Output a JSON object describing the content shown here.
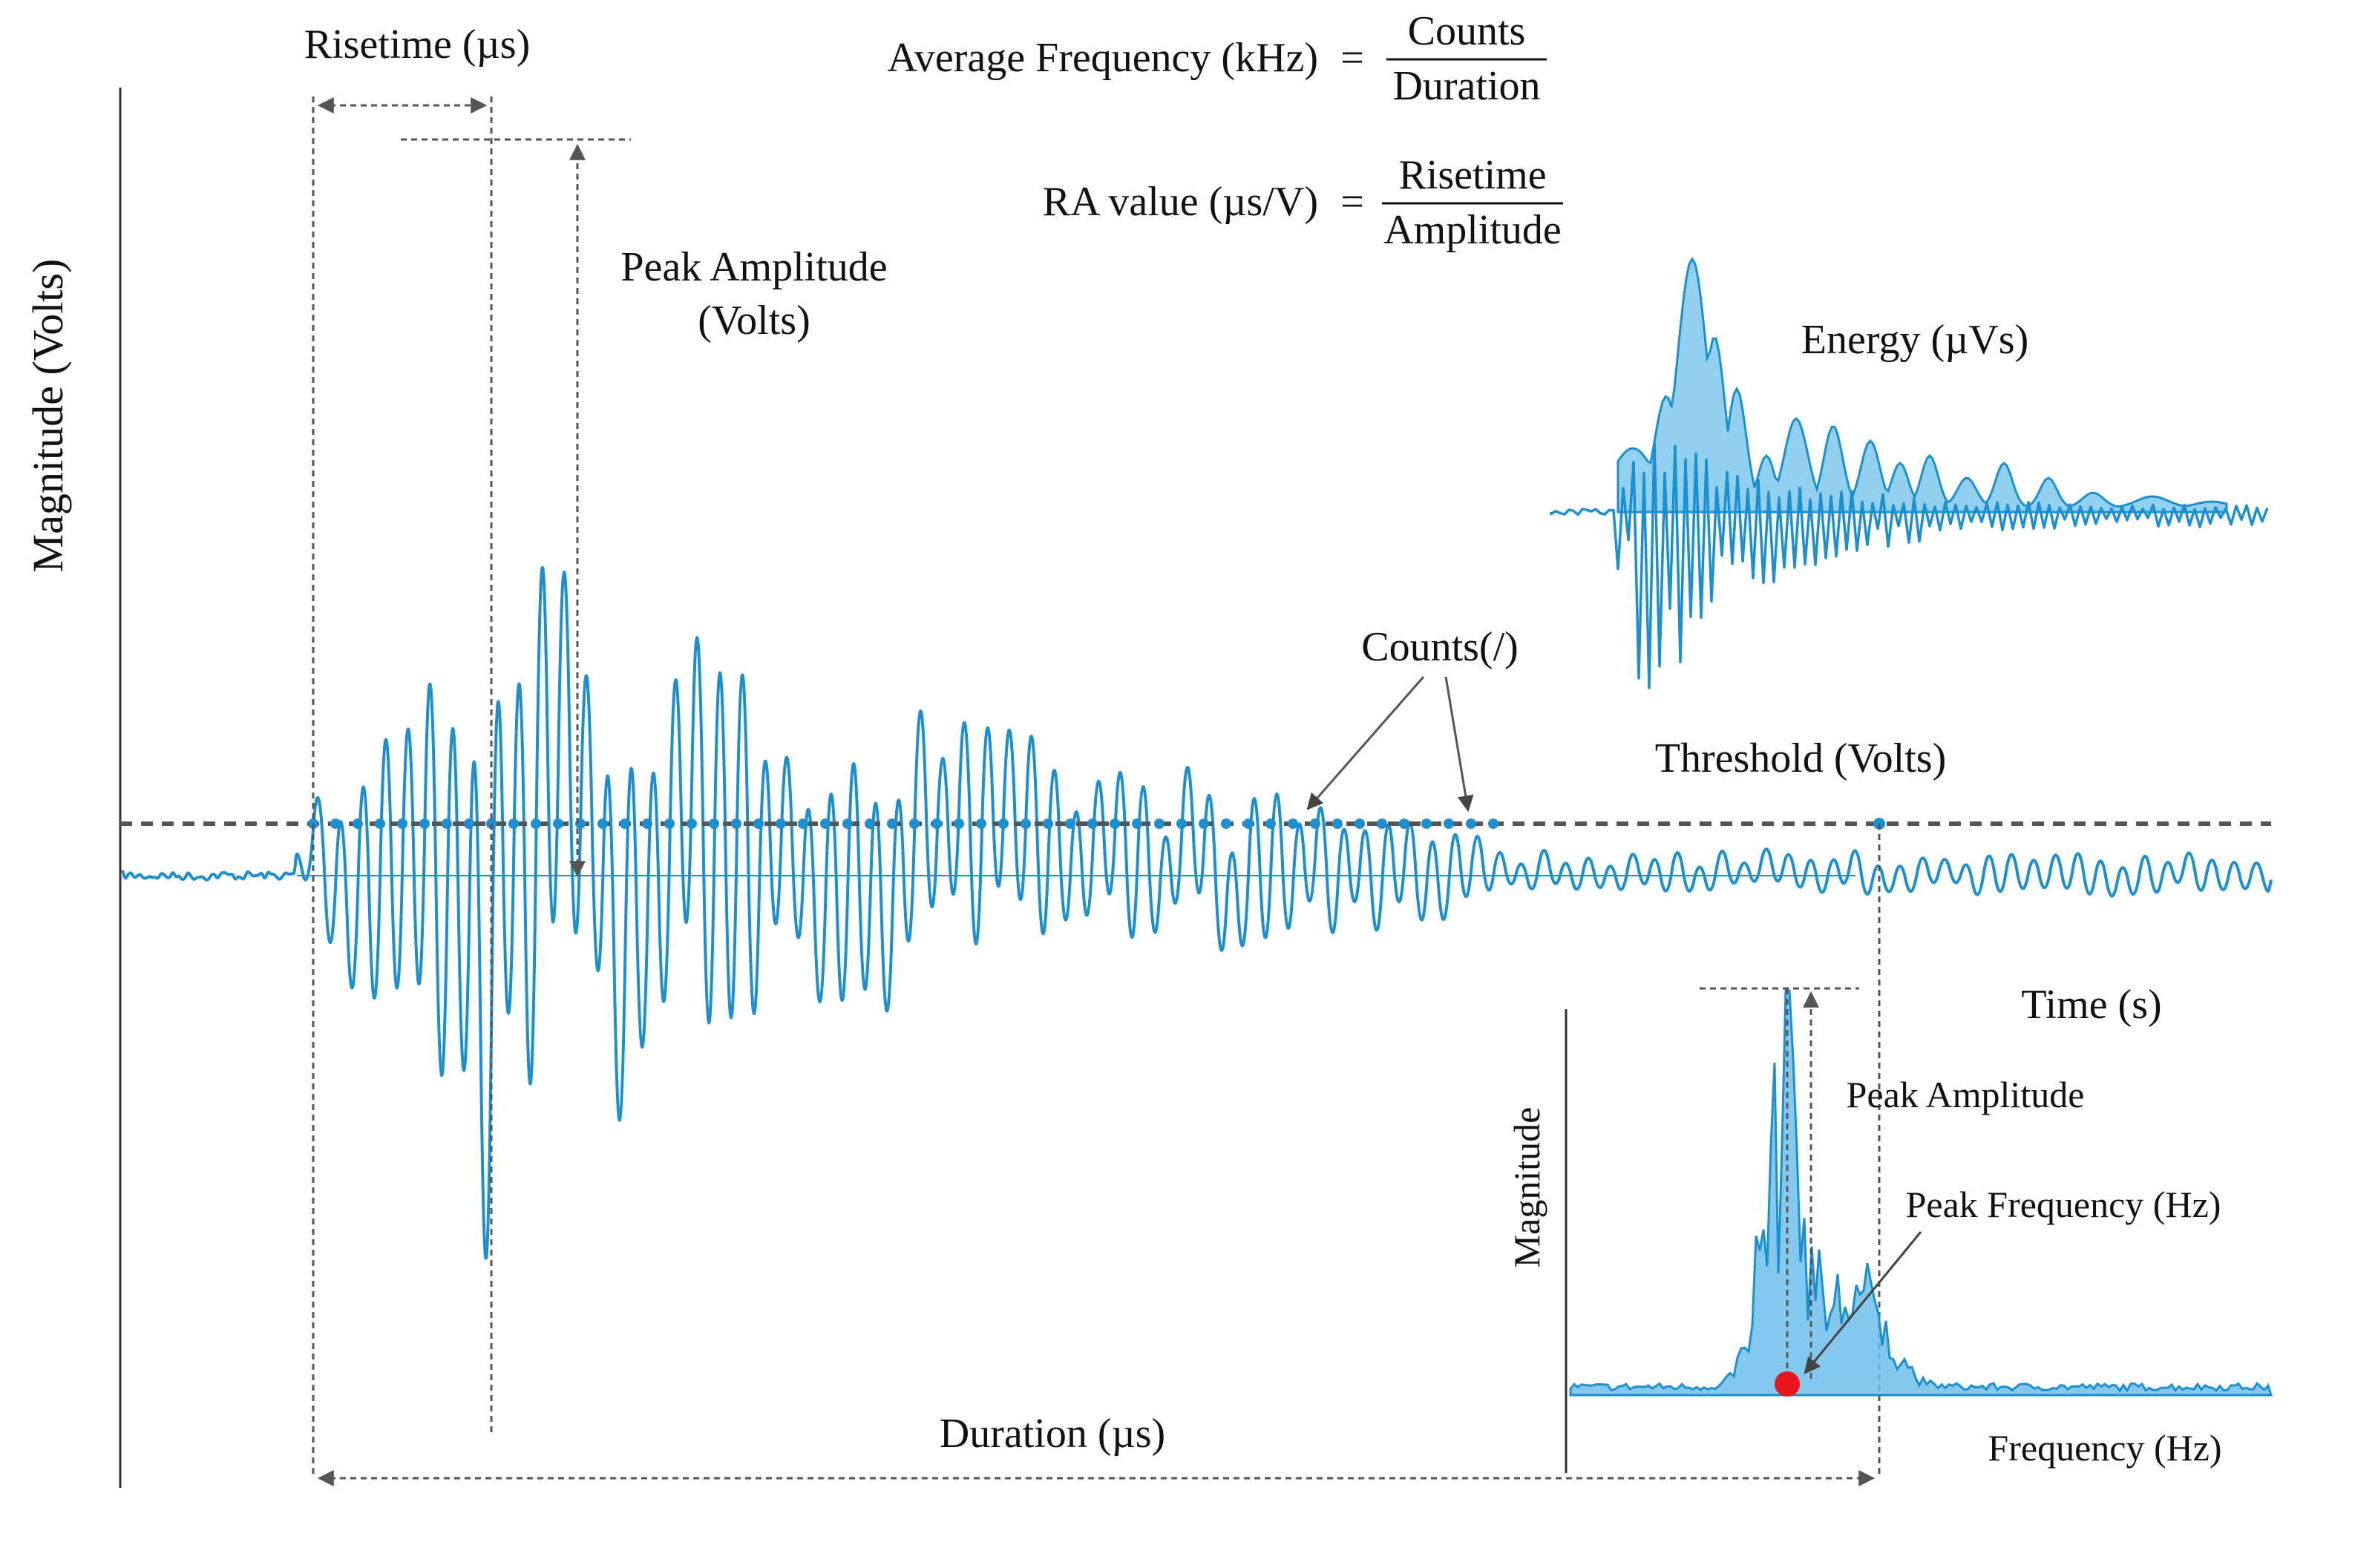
{
  "colors": {
    "wave": "#1b8fd0",
    "fill": "#6ec0ea",
    "dashed": "#555555",
    "axis": "#333333",
    "peak_marker": "#e8141e"
  },
  "labels": {
    "y_axis": "Magnitude (Volts)",
    "risetime": "Risetime (µs)",
    "peak_amplitude_line1": "Peak Amplitude",
    "peak_amplitude_line2": "(Volts)",
    "counts": "Counts(/)",
    "threshold": "Threshold (Volts)",
    "time": "Time (s)",
    "duration": "Duration (µs)",
    "energy": "Energy (µVs)"
  },
  "formulas": {
    "avg_freq_lhs": "Average Frequency (kHz)",
    "avg_freq_eq": "=",
    "avg_freq_num": "Counts",
    "avg_freq_den": "Duration",
    "ra_lhs": "RA value (µs/V)",
    "ra_eq": "=",
    "ra_num": "Risetime",
    "ra_den": "Amplitude"
  },
  "spectrum_inset": {
    "y_label": "Magnitude",
    "x_label": "Frequency (Hz)",
    "peak_amplitude": "Peak Amplitude",
    "peak_frequency": "Peak Frequency (Hz)"
  }
}
